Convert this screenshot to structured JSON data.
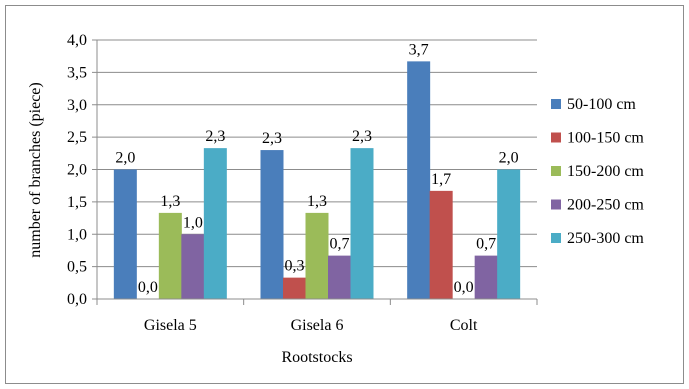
{
  "chart_data": {
    "type": "bar",
    "categories": [
      "Gisela 5",
      "Gisela 6",
      "Colt"
    ],
    "series": [
      {
        "name": "50-100 cm",
        "values": [
          2.0,
          2.3,
          3.67
        ],
        "labels": [
          "2,0",
          "2,3",
          "3,7"
        ],
        "color": "#4a7ebb"
      },
      {
        "name": "100-150 cm",
        "values": [
          0.0,
          0.33,
          1.67
        ],
        "labels": [
          "0,0",
          "0,3",
          "1,7"
        ],
        "color": "#c0504d"
      },
      {
        "name": "150-200 cm",
        "values": [
          1.33,
          1.33,
          0.0
        ],
        "labels": [
          "1,3",
          "1,3",
          "0,0"
        ],
        "color": "#9bbb59"
      },
      {
        "name": "200-250 cm",
        "values": [
          1.0,
          0.67,
          0.67
        ],
        "labels": [
          "1,0",
          "0,7",
          "0,7"
        ],
        "color": "#8064a2"
      },
      {
        "name": "250-300 cm",
        "values": [
          2.33,
          2.33,
          2.0
        ],
        "labels": [
          "2,3",
          "2,3",
          "2,0"
        ],
        "color": "#4bacc6"
      }
    ],
    "xlabel": "Rootstocks",
    "ylabel": "number of branches (piece)",
    "ylim": [
      0,
      4.0
    ],
    "yticks": [
      "0,0",
      "0,5",
      "1,0",
      "1,5",
      "2,0",
      "2,5",
      "3,0",
      "3,5",
      "4,0"
    ],
    "ytick_values": [
      0,
      0.5,
      1.0,
      1.5,
      2.0,
      2.5,
      3.0,
      3.5,
      4.0
    ],
    "grid": true,
    "legend": "right"
  }
}
